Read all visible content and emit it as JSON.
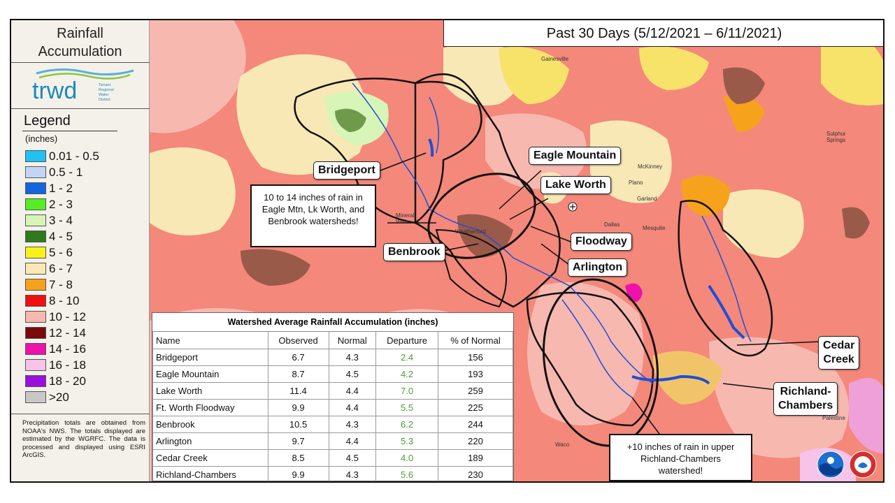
{
  "sidebar": {
    "title_line1": "Rainfall",
    "title_line2": "Accumulation",
    "logo_text": "trwd",
    "logo_sub": [
      "Tarrant",
      "Regional",
      "Water",
      "District"
    ],
    "legend_title": "Legend",
    "legend_unit": "(inches)",
    "legend_items": [
      {
        "label": "0.01 - 0.5",
        "color": "#1fc2f2"
      },
      {
        "label": "0.5 - 1",
        "color": "#c3d5f7"
      },
      {
        "label": "1 - 2",
        "color": "#1466e0"
      },
      {
        "label": "2 - 3",
        "color": "#55ee22"
      },
      {
        "label": "3 - 4",
        "color": "#d8f5b8"
      },
      {
        "label": "4 - 5",
        "color": "#2f7a1c"
      },
      {
        "label": "5 - 6",
        "color": "#f7f21c"
      },
      {
        "label": "6 - 7",
        "color": "#f7e8b5"
      },
      {
        "label": "7 - 8",
        "color": "#f7a21c"
      },
      {
        "label": "8 - 10",
        "color": "#ee1111"
      },
      {
        "label": "10 - 12",
        "color": "#f7b8b0"
      },
      {
        "label": "12 - 14",
        "color": "#7a0a0a"
      },
      {
        "label": "14 - 16",
        "color": "#ee11aa"
      },
      {
        "label": "16 - 18",
        "color": "#f7c3e8"
      },
      {
        "label": "18 - 20",
        "color": "#9a11dd"
      },
      {
        "label": ">20",
        "color": "#c8c8c8"
      }
    ],
    "note": "Precipitation totals are obtained from NOAA's NWS. The totals displayed are estimated by the WGRFC. The data is processed and displayed using ESRI ArcGIS."
  },
  "header": {
    "title": "Past 30 Days (5/12/2021 – 6/11/2021)"
  },
  "callouts": {
    "bridgeport": "Bridgeport",
    "eagle_mountain": "Eagle Mountain",
    "lake_worth": "Lake Worth",
    "floodway": "Floodway",
    "benbrook": "Benbrook",
    "arlington": "Arlington",
    "cedar_creek": "Cedar\nCreek",
    "richland": "Richland-\nChambers"
  },
  "annotations": {
    "upper": "10 to 14 inches of rain in Eagle Mtn, Lk Worth, and Benbrook watersheds!",
    "lower": "+10 inches of rain in upper Richland-Chambers watershed!"
  },
  "table": {
    "caption": "Watershed Average Rainfall Accumulation (inches)",
    "headers": [
      "Name",
      "Observed",
      "Normal",
      "Departure",
      "% of Normal"
    ],
    "departure_color": "#4e9a3c",
    "rows": [
      [
        "Bridgeport",
        "6.7",
        "4.3",
        "2.4",
        "156"
      ],
      [
        "Eagle Mountain",
        "8.7",
        "4.5",
        "4.2",
        "193"
      ],
      [
        "Lake Worth",
        "11.4",
        "4.4",
        "7.0",
        "259"
      ],
      [
        "Ft. Worth Floodway",
        "9.9",
        "4.4",
        "5.5",
        "225"
      ],
      [
        "Benbrook",
        "10.5",
        "4.3",
        "6.2",
        "244"
      ],
      [
        "Arlington",
        "9.7",
        "4.4",
        "5.3",
        "220"
      ],
      [
        "Cedar Creek",
        "8.5",
        "4.5",
        "4.0",
        "189"
      ],
      [
        "Richland-Chambers",
        "9.9",
        "4.3",
        "5.6",
        "230"
      ]
    ]
  },
  "map_labels": {
    "mineral_wells": "Mineral\nWells",
    "gainesville": "Gainesville",
    "mckinney": "McKinney",
    "plano": "Plano",
    "garland": "Garland",
    "dallas": "Dallas",
    "mesquite": "Mesquite",
    "sulphur_springs": "Sulphur\nSprings",
    "waco": "Waco",
    "palestine": "Palestine",
    "weatherford": "Weatherford"
  }
}
